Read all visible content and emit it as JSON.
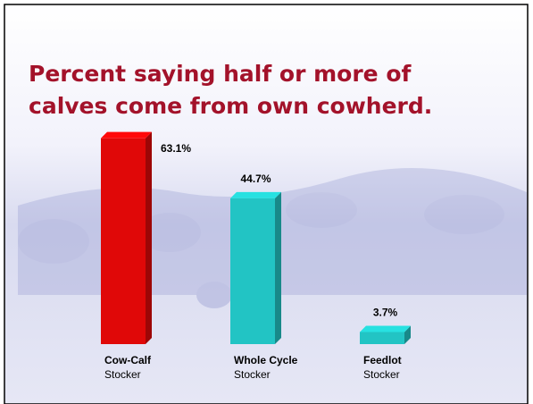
{
  "chart_data": {
    "type": "bar3d",
    "title_lines": [
      "Percent saying half or more of",
      "calves come from own cowherd."
    ],
    "categories": [
      "Cow-Calf",
      "Whole Cycle",
      "Feedlot"
    ],
    "category_sublabels": [
      "Stocker",
      "Stocker",
      "Stocker"
    ],
    "values": [
      63.1,
      44.7,
      3.7
    ],
    "value_labels": [
      "63.1%",
      "44.7%",
      "3.7%"
    ],
    "colors": [
      "#e00808",
      "#22c4c4",
      "#22c4c4"
    ]
  }
}
